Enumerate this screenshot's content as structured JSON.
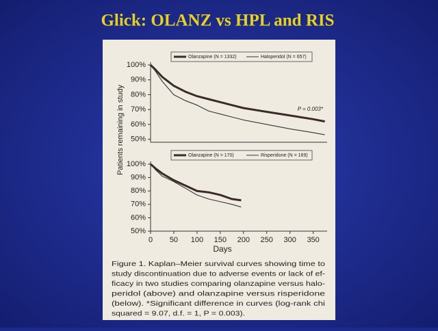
{
  "slide_title": "Glick:  OLANZ vs HPL and RIS",
  "chart_data": [
    {
      "type": "line",
      "ylabel": "Patients remaining in study",
      "x": [
        0,
        10,
        25,
        50,
        75,
        100,
        125,
        150,
        175,
        200,
        250,
        300,
        350,
        375
      ],
      "series": [
        {
          "name": "Olanzapine (N = 1332)",
          "color": "#3a2a2a",
          "values": [
            100,
            97,
            92,
            86,
            82,
            79,
            77,
            75,
            73,
            71,
            68.5,
            66,
            63.5,
            62
          ]
        },
        {
          "name": "Haloperidol (N = 657)",
          "color": "#333333",
          "values": [
            100,
            96,
            89,
            80,
            76,
            73,
            69,
            67,
            65,
            63,
            60,
            57,
            54.5,
            53
          ]
        }
      ],
      "annotation": "P = 0.003*",
      "xlim": [
        0,
        380
      ],
      "ylim": [
        48,
        100
      ],
      "yticks": [
        {
          "value": 100,
          "label": "100%"
        },
        {
          "value": 90,
          "label": "90%"
        },
        {
          "value": 80,
          "label": "80%"
        },
        {
          "value": 70,
          "label": "70%"
        },
        {
          "value": 60,
          "label": "60%"
        },
        {
          "value": 50,
          "label": "50%"
        }
      ]
    },
    {
      "type": "line",
      "xlabel": "Days",
      "x": [
        0,
        10,
        25,
        50,
        75,
        100,
        125,
        150,
        175,
        195
      ],
      "series": [
        {
          "name": "Olanzapine (N = 170)",
          "color": "#3a2a2a",
          "values": [
            100,
            97,
            93,
            88,
            84,
            80,
            79,
            77,
            74,
            73
          ]
        },
        {
          "name": "Risperidone (N = 169)",
          "color": "#333333",
          "values": [
            100,
            96,
            91,
            87,
            82,
            77,
            74,
            72,
            70,
            68
          ]
        }
      ],
      "xlim": [
        0,
        380
      ],
      "ylim": [
        50,
        100
      ],
      "xticks": [
        0,
        50,
        100,
        150,
        200,
        250,
        300,
        350
      ],
      "yticks": [
        {
          "value": 100,
          "label": "100%"
        },
        {
          "value": 90,
          "label": "90%"
        },
        {
          "value": 80,
          "label": "80%"
        },
        {
          "value": 70,
          "label": "70%"
        },
        {
          "value": 60,
          "label": "60%"
        },
        {
          "value": 50,
          "label": "50%"
        }
      ]
    }
  ],
  "caption": [
    "Figure 1.  Kaplan–Meier survival curves showing time to",
    "study discontinuation due to adverse events or lack of ef-",
    "ficacy in two studies comparing olanzapine versus halo-",
    "peridol (above) and olanzapine versus risperidone",
    "(below). *Significant difference in curves (log-rank chi",
    "squared = 9.07, d.f. = 1, P = 0.003)."
  ]
}
